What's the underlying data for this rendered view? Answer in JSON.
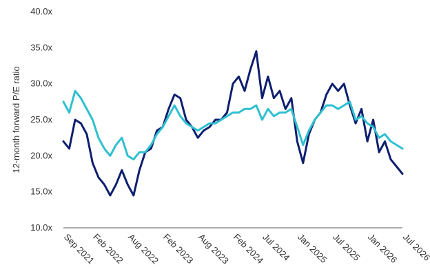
{
  "chart_data": {
    "type": "line",
    "title": "",
    "xlabel": "",
    "ylabel": "12-month forward P/E ratio",
    "ylim": [
      10,
      40
    ],
    "yticks": [
      "10.0x",
      "15.0x",
      "20.0x",
      "25.0x",
      "30.0x",
      "35.0x",
      "40.0x"
    ],
    "ytick_values": [
      10,
      15,
      20,
      25,
      30,
      35,
      40
    ],
    "xlim": [
      "2021-09",
      "2026-07"
    ],
    "xticks": [
      "Sep 2021",
      "Feb 2022",
      "Aug 2022",
      "Feb 2023",
      "Aug 2023",
      "Feb 2024",
      "Jul 2024",
      "Jan 2025",
      "Jul 2025",
      "Jan 2026",
      "Jul 2026"
    ],
    "xtick_values": [
      "2021-09",
      "2022-02",
      "2022-08",
      "2023-02",
      "2023-08",
      "2024-02",
      "2024-07",
      "2025-01",
      "2025-07",
      "2026-01",
      "2026-07"
    ],
    "grid": false,
    "legend": "none",
    "series": [
      {
        "color": "#0d1f6e",
        "x": [
          "2021-09",
          "2021-10",
          "2021-11",
          "2021-12",
          "2022-01",
          "2022-02",
          "2022-03",
          "2022-04",
          "2022-05",
          "2022-06",
          "2022-07",
          "2022-08",
          "2022-09",
          "2022-10",
          "2022-11",
          "2022-12",
          "2023-01",
          "2023-02",
          "2023-03",
          "2023-04",
          "2023-05",
          "2023-06",
          "2023-07",
          "2023-08",
          "2023-09",
          "2023-10",
          "2023-11",
          "2023-12",
          "2024-01",
          "2024-02",
          "2024-03",
          "2024-04",
          "2024-05",
          "2024-06",
          "2024-07",
          "2024-08",
          "2024-09",
          "2024-10",
          "2024-11",
          "2024-12",
          "2025-01",
          "2025-02",
          "2025-03",
          "2025-04",
          "2025-05",
          "2025-06",
          "2025-07",
          "2025-08",
          "2025-09",
          "2025-10",
          "2025-11",
          "2025-12",
          "2026-01",
          "2026-02",
          "2026-03",
          "2026-04",
          "2026-05",
          "2026-06",
          "2026-07"
        ],
        "y": [
          22.0,
          21.0,
          25.0,
          24.5,
          23.0,
          19.0,
          17.0,
          16.0,
          14.5,
          16.0,
          18.0,
          16.0,
          14.5,
          18.0,
          20.5,
          21.0,
          23.5,
          24.0,
          26.5,
          28.5,
          28.0,
          25.0,
          24.0,
          22.5,
          23.5,
          24.0,
          25.0,
          25.0,
          26.0,
          30.0,
          31.0,
          29.0,
          32.0,
          34.5,
          28.0,
          31.0,
          28.0,
          29.0,
          26.5,
          28.0,
          22.0,
          19.0,
          23.0,
          25.0,
          26.0,
          28.5,
          30.0,
          29.0,
          30.0,
          27.0,
          24.5,
          26.5,
          22.0,
          25.0,
          20.5,
          22.0,
          19.5,
          18.5,
          17.5
        ]
      },
      {
        "color": "#2ec0d0",
        "x": [
          "2021-09",
          "2021-10",
          "2021-11",
          "2021-12",
          "2022-01",
          "2022-02",
          "2022-03",
          "2022-04",
          "2022-05",
          "2022-06",
          "2022-07",
          "2022-08",
          "2022-09",
          "2022-10",
          "2022-11",
          "2022-12",
          "2023-01",
          "2023-02",
          "2023-03",
          "2023-04",
          "2023-05",
          "2023-06",
          "2023-07",
          "2023-08",
          "2023-09",
          "2023-10",
          "2023-11",
          "2023-12",
          "2024-01",
          "2024-02",
          "2024-03",
          "2024-04",
          "2024-05",
          "2024-06",
          "2024-07",
          "2024-08",
          "2024-09",
          "2024-10",
          "2024-11",
          "2024-12",
          "2025-01",
          "2025-02",
          "2025-03",
          "2025-04",
          "2025-05",
          "2025-06",
          "2025-07",
          "2025-08",
          "2025-09",
          "2025-10",
          "2025-11",
          "2025-12",
          "2026-01",
          "2026-02",
          "2026-03",
          "2026-04",
          "2026-05",
          "2026-06",
          "2026-07"
        ],
        "y": [
          27.5,
          26.0,
          29.0,
          28.0,
          26.5,
          25.0,
          22.5,
          21.0,
          20.0,
          21.5,
          22.5,
          20.0,
          19.5,
          20.5,
          20.5,
          21.5,
          23.0,
          24.0,
          25.5,
          27.0,
          25.5,
          24.5,
          24.0,
          23.5,
          24.0,
          24.5,
          24.5,
          25.0,
          25.5,
          26.0,
          26.0,
          26.5,
          26.5,
          27.0,
          25.0,
          26.5,
          25.5,
          26.0,
          26.0,
          26.5,
          24.0,
          21.5,
          23.5,
          25.0,
          26.0,
          27.0,
          27.0,
          26.5,
          27.0,
          27.5,
          25.0,
          25.5,
          24.5,
          24.0,
          22.5,
          23.0,
          22.0,
          21.5,
          21.0
        ]
      }
    ]
  }
}
